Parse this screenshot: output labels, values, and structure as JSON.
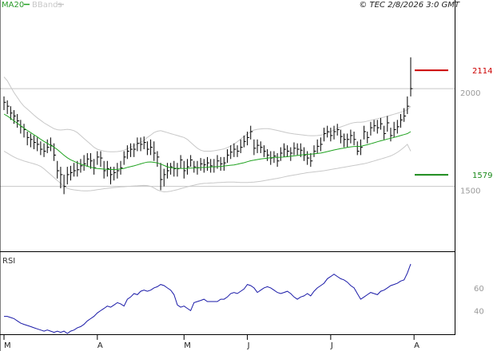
{
  "legend": {
    "ma_label": "MA20",
    "bb_label": "BBands"
  },
  "copyright": "© TEC 2/8/2026 3:0 GMT",
  "colors": {
    "price": "#000000",
    "ma": "#1fa21f",
    "bands": "#c8c8c8",
    "rsi": "#1a1aa8",
    "resistance": "#cc0000",
    "support": "#1a8a1a",
    "hline": "#c8c8c8",
    "frame": "#000000"
  },
  "chart_data": [
    {
      "type": "ohlc",
      "panel": "price",
      "ylim": [
        1200,
        2400
      ],
      "y_ticks": [
        {
          "value": 1500,
          "label": "1500"
        },
        {
          "value": 2000,
          "label": "2000"
        }
      ],
      "x_ticks": [
        "M",
        "A",
        "M",
        "J",
        "J",
        "A"
      ],
      "x_tick_index": [
        0,
        28,
        54,
        73,
        98,
        123
      ],
      "horizontal_lines": [
        2020,
        1520
      ],
      "markers": [
        {
          "value": 2114,
          "label": "2114",
          "kind": "resistance"
        },
        {
          "value": 1579,
          "label": "1579",
          "kind": "support"
        }
      ],
      "close": [
        1950,
        1930,
        1895,
        1880,
        1855,
        1825,
        1810,
        1770,
        1760,
        1745,
        1735,
        1710,
        1700,
        1720,
        1730,
        1680,
        1600,
        1580,
        1520,
        1580,
        1590,
        1600,
        1605,
        1625,
        1635,
        1660,
        1650,
        1615,
        1670,
        1665,
        1600,
        1610,
        1580,
        1590,
        1600,
        1615,
        1670,
        1700,
        1710,
        1710,
        1740,
        1735,
        1745,
        1710,
        1720,
        1690,
        1670,
        1555,
        1580,
        1600,
        1620,
        1610,
        1610,
        1655,
        1600,
        1620,
        1655,
        1620,
        1615,
        1635,
        1630,
        1640,
        1625,
        1620,
        1650,
        1635,
        1640,
        1680,
        1695,
        1710,
        1700,
        1720,
        1750,
        1770,
        1800,
        1715,
        1730,
        1720,
        1700,
        1680,
        1665,
        1675,
        1650,
        1690,
        1710,
        1700,
        1690,
        1715,
        1710,
        1705,
        1680,
        1665,
        1650,
        1700,
        1725,
        1735,
        1790,
        1800,
        1780,
        1800,
        1810,
        1775,
        1760,
        1760,
        1780,
        1760,
        1700,
        1720,
        1800,
        1770,
        1820,
        1830,
        1820,
        1840,
        1790,
        1845,
        1780,
        1810,
        1825,
        1860,
        1880,
        1930,
        2020
      ],
      "high": [
        1980,
        1960,
        1930,
        1910,
        1890,
        1860,
        1840,
        1800,
        1790,
        1780,
        1770,
        1750,
        1740,
        1760,
        1770,
        1740,
        1650,
        1620,
        1580,
        1620,
        1625,
        1640,
        1650,
        1660,
        1680,
        1690,
        1690,
        1660,
        1700,
        1700,
        1650,
        1650,
        1620,
        1620,
        1640,
        1650,
        1700,
        1730,
        1740,
        1740,
        1770,
        1770,
        1775,
        1750,
        1760,
        1750,
        1700,
        1640,
        1610,
        1640,
        1640,
        1650,
        1640,
        1680,
        1650,
        1660,
        1680,
        1650,
        1650,
        1665,
        1660,
        1670,
        1660,
        1660,
        1680,
        1670,
        1670,
        1710,
        1730,
        1740,
        1730,
        1760,
        1780,
        1800,
        1830,
        1760,
        1760,
        1750,
        1730,
        1710,
        1700,
        1700,
        1690,
        1720,
        1740,
        1730,
        1720,
        1745,
        1740,
        1740,
        1720,
        1700,
        1690,
        1730,
        1760,
        1770,
        1820,
        1830,
        1820,
        1830,
        1840,
        1810,
        1790,
        1790,
        1810,
        1800,
        1750,
        1760,
        1830,
        1800,
        1850,
        1860,
        1860,
        1870,
        1830,
        1880,
        1820,
        1850,
        1860,
        1890,
        1920,
        1980,
        2180
      ],
      "low": [
        1910,
        1890,
        1860,
        1840,
        1820,
        1790,
        1770,
        1730,
        1720,
        1710,
        1700,
        1680,
        1670,
        1690,
        1700,
        1650,
        1560,
        1510,
        1480,
        1530,
        1550,
        1570,
        1570,
        1590,
        1600,
        1620,
        1610,
        1580,
        1630,
        1620,
        1560,
        1570,
        1530,
        1550,
        1560,
        1580,
        1630,
        1660,
        1670,
        1670,
        1700,
        1700,
        1710,
        1680,
        1680,
        1650,
        1620,
        1500,
        1520,
        1560,
        1580,
        1570,
        1570,
        1610,
        1560,
        1580,
        1620,
        1590,
        1580,
        1600,
        1590,
        1600,
        1590,
        1590,
        1610,
        1600,
        1600,
        1640,
        1660,
        1670,
        1670,
        1690,
        1720,
        1730,
        1760,
        1680,
        1690,
        1690,
        1670,
        1650,
        1630,
        1640,
        1620,
        1650,
        1670,
        1670,
        1650,
        1680,
        1680,
        1670,
        1650,
        1630,
        1620,
        1670,
        1690,
        1700,
        1750,
        1770,
        1750,
        1760,
        1780,
        1740,
        1720,
        1720,
        1740,
        1730,
        1680,
        1680,
        1760,
        1740,
        1780,
        1800,
        1790,
        1810,
        1760,
        1800,
        1750,
        1770,
        1790,
        1820,
        1850,
        1890,
        1980
      ],
      "ma20": [
        1890,
        1880,
        1868,
        1855,
        1843,
        1830,
        1818,
        1806,
        1795,
        1784,
        1773,
        1761,
        1750,
        1740,
        1730,
        1720,
        1708,
        1694,
        1679,
        1666,
        1656,
        1648,
        1640,
        1634,
        1628,
        1623,
        1618,
        1614,
        1611,
        1610,
        1608,
        1607,
        1606,
        1606,
        1607,
        1609,
        1612,
        1617,
        1621,
        1625,
        1630,
        1635,
        1640,
        1644,
        1645,
        1643,
        1640,
        1634,
        1627,
        1620,
        1616,
        1613,
        1612,
        1612,
        1612,
        1612,
        1613,
        1614,
        1615,
        1616,
        1617,
        1618,
        1619,
        1620,
        1621,
        1622,
        1624,
        1626,
        1628,
        1630,
        1633,
        1637,
        1641,
        1646,
        1651,
        1654,
        1657,
        1660,
        1662,
        1664,
        1666,
        1668,
        1668,
        1669,
        1670,
        1672,
        1674,
        1676,
        1678,
        1680,
        1682,
        1684,
        1685,
        1686,
        1688,
        1690,
        1694,
        1698,
        1702,
        1706,
        1710,
        1713,
        1716,
        1719,
        1722,
        1724,
        1724,
        1725,
        1729,
        1733,
        1738,
        1743,
        1748,
        1753,
        1757,
        1762,
        1766,
        1770,
        1775,
        1780,
        1785,
        1790,
        1800
      ],
      "bb_upper": [
        2080,
        2060,
        2030,
        2000,
        1975,
        1950,
        1930,
        1915,
        1900,
        1885,
        1870,
        1858,
        1845,
        1835,
        1825,
        1815,
        1810,
        1808,
        1810,
        1812,
        1810,
        1805,
        1795,
        1780,
        1765,
        1750,
        1735,
        1720,
        1710,
        1705,
        1700,
        1698,
        1697,
        1697,
        1698,
        1700,
        1705,
        1712,
        1720,
        1728,
        1736,
        1745,
        1755,
        1770,
        1782,
        1795,
        1802,
        1805,
        1800,
        1795,
        1790,
        1785,
        1780,
        1775,
        1770,
        1760,
        1745,
        1730,
        1715,
        1705,
        1700,
        1700,
        1700,
        1702,
        1705,
        1708,
        1712,
        1718,
        1726,
        1736,
        1748,
        1762,
        1775,
        1788,
        1800,
        1808,
        1812,
        1814,
        1815,
        1815,
        1813,
        1810,
        1806,
        1802,
        1798,
        1794,
        1791,
        1788,
        1786,
        1784,
        1782,
        1780,
        1779,
        1779,
        1780,
        1782,
        1786,
        1792,
        1800,
        1808,
        1816,
        1824,
        1830,
        1836,
        1842,
        1846,
        1848,
        1848,
        1850,
        1854,
        1858,
        1862,
        1866,
        1870,
        1874,
        1879,
        1884,
        1889,
        1894,
        1899,
        1905,
        1912,
        1930
      ],
      "bb_lower": [
        1700,
        1690,
        1680,
        1670,
        1662,
        1656,
        1650,
        1645,
        1640,
        1635,
        1630,
        1622,
        1610,
        1595,
        1580,
        1565,
        1550,
        1535,
        1520,
        1510,
        1505,
        1502,
        1500,
        1498,
        1497,
        1497,
        1498,
        1500,
        1503,
        1505,
        1508,
        1510,
        1512,
        1514,
        1515,
        1517,
        1518,
        1520,
        1521,
        1522,
        1523,
        1524,
        1525,
        1524,
        1520,
        1512,
        1502,
        1495,
        1492,
        1493,
        1495,
        1499,
        1503,
        1508,
        1513,
        1518,
        1522,
        1526,
        1530,
        1533,
        1535,
        1536,
        1537,
        1538,
        1539,
        1540,
        1541,
        1542,
        1542,
        1542,
        1541,
        1540,
        1540,
        1540,
        1541,
        1542,
        1544,
        1546,
        1549,
        1552,
        1555,
        1558,
        1561,
        1564,
        1568,
        1572,
        1575,
        1578,
        1581,
        1584,
        1587,
        1590,
        1592,
        1594,
        1596,
        1598,
        1600,
        1603,
        1606,
        1609,
        1612,
        1615,
        1618,
        1621,
        1624,
        1627,
        1630,
        1633,
        1636,
        1640,
        1645,
        1650,
        1655,
        1660,
        1665,
        1670,
        1676,
        1684,
        1694,
        1706,
        1720,
        1735,
        1700
      ]
    },
    {
      "type": "line",
      "panel": "rsi",
      "title": "RSI",
      "ylim": [
        20,
        90
      ],
      "y_ticks": [
        {
          "value": 40,
          "label": "40"
        },
        {
          "value": 60,
          "label": "60"
        }
      ],
      "values": [
        35,
        35,
        34,
        33,
        31,
        29,
        28,
        27,
        26,
        25,
        24,
        23,
        22,
        23,
        22,
        21,
        22,
        21,
        22,
        20,
        22,
        23,
        25,
        26,
        28,
        31,
        33,
        35,
        38,
        40,
        42,
        44,
        43,
        45,
        47,
        46,
        44,
        50,
        52,
        55,
        54,
        57,
        58,
        57,
        58,
        60,
        61,
        63,
        62,
        60,
        58,
        54,
        45,
        43,
        44,
        42,
        40,
        47,
        48,
        49,
        50,
        48,
        48,
        48,
        48,
        50,
        50,
        52,
        55,
        56,
        55,
        57,
        59,
        63,
        62,
        60,
        56,
        58,
        60,
        61,
        60,
        58,
        56,
        55,
        56,
        57,
        55,
        52,
        50,
        52,
        53,
        55,
        53,
        57,
        60,
        62,
        64,
        68,
        70,
        72,
        70,
        68,
        67,
        65,
        62,
        60,
        55,
        50,
        52,
        54,
        56,
        55,
        54,
        57,
        58,
        60,
        62,
        63,
        64,
        66,
        67,
        73,
        81
      ]
    }
  ]
}
